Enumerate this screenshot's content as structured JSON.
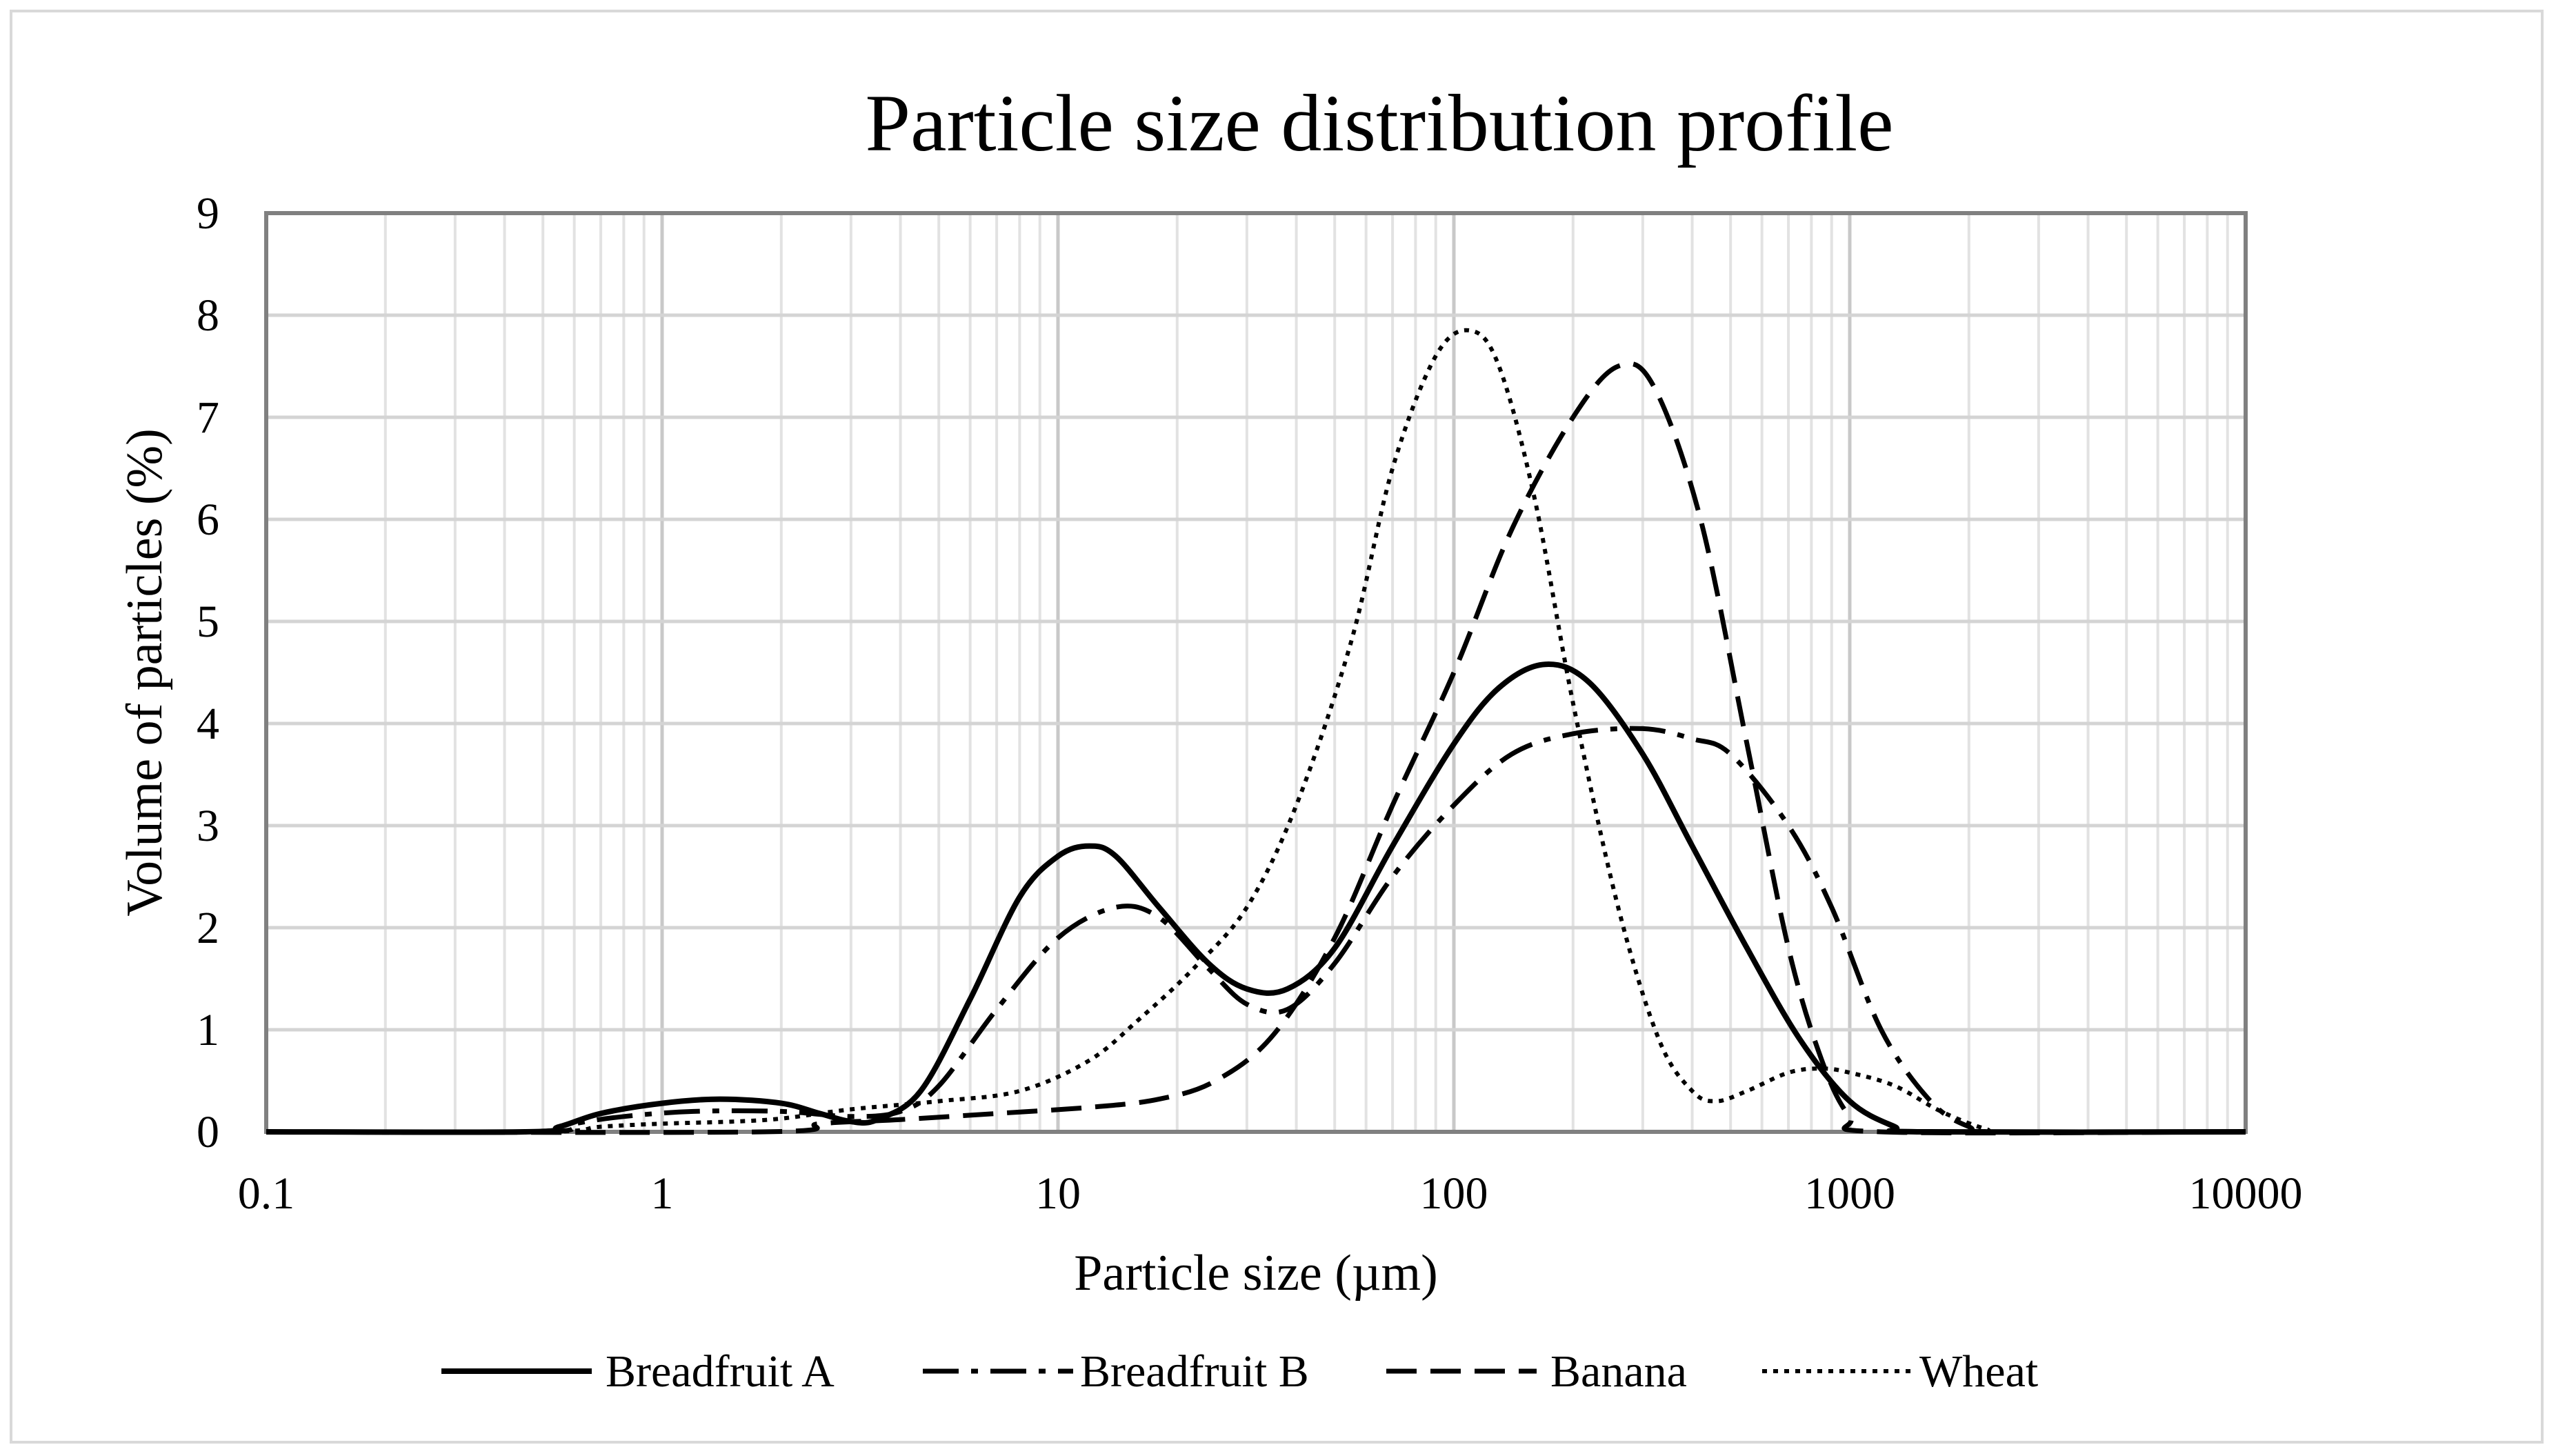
{
  "chart_data": {
    "type": "line",
    "title": "Particle size distribution profile",
    "xlabel": "Particle size (µm)",
    "ylabel": "Volume of particles (%)",
    "xscale": "log",
    "xlim": [
      0.1,
      10000
    ],
    "ylim": [
      0,
      9
    ],
    "xticks": [
      "0.1",
      "1",
      "10",
      "100",
      "1000",
      "10000"
    ],
    "yticks": [
      "0",
      "1",
      "2",
      "3",
      "4",
      "5",
      "6",
      "7",
      "8",
      "9"
    ],
    "grid": true,
    "legend_position": "bottom",
    "series": [
      {
        "name": "Breadfruit A",
        "style": "solid",
        "color": "#000000",
        "points": [
          [
            0.1,
            0
          ],
          [
            0.45,
            0
          ],
          [
            0.55,
            0.05
          ],
          [
            0.7,
            0.18
          ],
          [
            1.0,
            0.28
          ],
          [
            1.4,
            0.32
          ],
          [
            2.0,
            0.28
          ],
          [
            2.5,
            0.18
          ],
          [
            3.0,
            0.1
          ],
          [
            3.5,
            0.12
          ],
          [
            4.5,
            0.4
          ],
          [
            6.0,
            1.3
          ],
          [
            8.0,
            2.3
          ],
          [
            10.0,
            2.7
          ],
          [
            12.0,
            2.8
          ],
          [
            14.0,
            2.7
          ],
          [
            18.0,
            2.2
          ],
          [
            24.0,
            1.65
          ],
          [
            30.0,
            1.4
          ],
          [
            38.0,
            1.4
          ],
          [
            50.0,
            1.8
          ],
          [
            70.0,
            2.8
          ],
          [
            100.0,
            3.8
          ],
          [
            130.0,
            4.35
          ],
          [
            170.0,
            4.58
          ],
          [
            220.0,
            4.4
          ],
          [
            300.0,
            3.7
          ],
          [
            400.0,
            2.8
          ],
          [
            550.0,
            1.8
          ],
          [
            750.0,
            0.9
          ],
          [
            1000.0,
            0.3
          ],
          [
            1300.0,
            0.05
          ],
          [
            1500.0,
            0
          ],
          [
            10000,
            0
          ]
        ]
      },
      {
        "name": "Breadfruit B",
        "style": "dash-dot",
        "color": "#000000",
        "points": [
          [
            0.1,
            0
          ],
          [
            0.5,
            0
          ],
          [
            0.6,
            0.08
          ],
          [
            0.8,
            0.15
          ],
          [
            1.2,
            0.2
          ],
          [
            2.0,
            0.2
          ],
          [
            3.0,
            0.15
          ],
          [
            4.0,
            0.2
          ],
          [
            5.0,
            0.45
          ],
          [
            7.0,
            1.2
          ],
          [
            10.0,
            1.9
          ],
          [
            14.0,
            2.2
          ],
          [
            18.0,
            2.1
          ],
          [
            24.0,
            1.6
          ],
          [
            30.0,
            1.25
          ],
          [
            38.0,
            1.2
          ],
          [
            50.0,
            1.65
          ],
          [
            70.0,
            2.5
          ],
          [
            100.0,
            3.2
          ],
          [
            140.0,
            3.7
          ],
          [
            200.0,
            3.9
          ],
          [
            300.0,
            3.95
          ],
          [
            400.0,
            3.85
          ],
          [
            500.0,
            3.7
          ],
          [
            700.0,
            3.0
          ],
          [
            900.0,
            2.2
          ],
          [
            1200.0,
            1.0
          ],
          [
            1600.0,
            0.3
          ],
          [
            2000.0,
            0.05
          ],
          [
            2400.0,
            0
          ],
          [
            10000,
            0
          ]
        ]
      },
      {
        "name": "Banana",
        "style": "dashed",
        "color": "#000000",
        "points": [
          [
            0.1,
            0
          ],
          [
            1.8,
            0
          ],
          [
            2.5,
            0.08
          ],
          [
            4.0,
            0.12
          ],
          [
            7.0,
            0.18
          ],
          [
            12.0,
            0.24
          ],
          [
            18.0,
            0.32
          ],
          [
            25.0,
            0.5
          ],
          [
            35.0,
            0.95
          ],
          [
            50.0,
            1.9
          ],
          [
            70.0,
            3.2
          ],
          [
            100.0,
            4.5
          ],
          [
            140.0,
            5.9
          ],
          [
            200.0,
            7.0
          ],
          [
            260.0,
            7.5
          ],
          [
            320.0,
            7.3
          ],
          [
            420.0,
            6.0
          ],
          [
            550.0,
            3.8
          ],
          [
            700.0,
            1.8
          ],
          [
            850.0,
            0.7
          ],
          [
            1000.0,
            0.15
          ],
          [
            1200.0,
            0
          ],
          [
            10000,
            0
          ]
        ]
      },
      {
        "name": "Wheat",
        "style": "dotted",
        "color": "#000000",
        "points": [
          [
            0.1,
            0
          ],
          [
            0.5,
            0
          ],
          [
            0.7,
            0.05
          ],
          [
            1.0,
            0.08
          ],
          [
            1.5,
            0.1
          ],
          [
            2.0,
            0.13
          ],
          [
            3.0,
            0.22
          ],
          [
            5.0,
            0.3
          ],
          [
            8.0,
            0.4
          ],
          [
            12.0,
            0.7
          ],
          [
            16.0,
            1.1
          ],
          [
            22.0,
            1.6
          ],
          [
            30.0,
            2.2
          ],
          [
            40.0,
            3.2
          ],
          [
            55.0,
            4.8
          ],
          [
            70.0,
            6.5
          ],
          [
            90.0,
            7.6
          ],
          [
            110.0,
            7.85
          ],
          [
            130.0,
            7.5
          ],
          [
            160.0,
            6.2
          ],
          [
            200.0,
            4.2
          ],
          [
            260.0,
            2.2
          ],
          [
            330.0,
            0.9
          ],
          [
            400.0,
            0.4
          ],
          [
            460.0,
            0.3
          ],
          [
            550.0,
            0.4
          ],
          [
            700.0,
            0.58
          ],
          [
            850.0,
            0.62
          ],
          [
            1000.0,
            0.58
          ],
          [
            1300.0,
            0.45
          ],
          [
            1700.0,
            0.2
          ],
          [
            2200.0,
            0.03
          ],
          [
            2600.0,
            0
          ],
          [
            10000,
            0
          ]
        ]
      }
    ]
  }
}
